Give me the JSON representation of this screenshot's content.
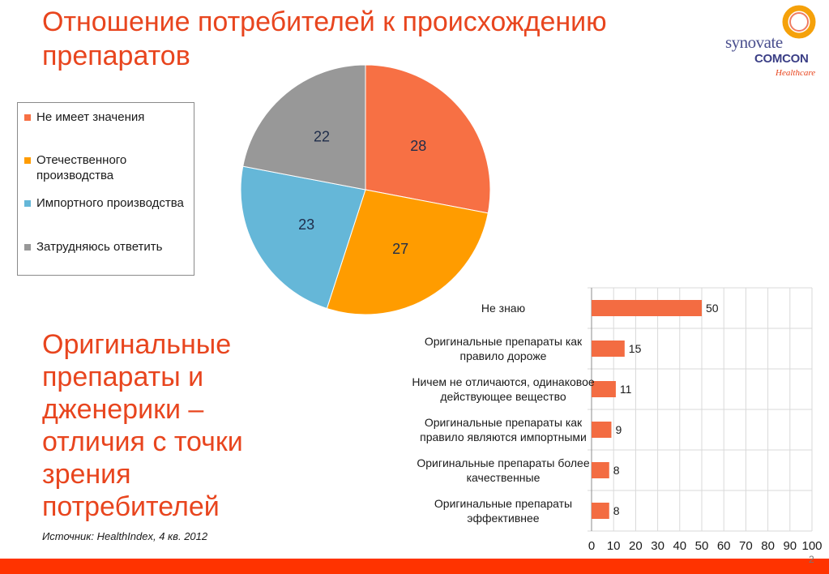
{
  "header": {
    "title": "Отношение потребителей к происхождению препаратов"
  },
  "logo": {
    "line1": "synovate",
    "line2": "COMCON",
    "line3": "Healthcare",
    "ring_color": "#f5a10a",
    "ring_inner_color": "#e8451e"
  },
  "subtitle": "Оригинальные препараты и дженерики – отличия с точки зрения потребителей",
  "source": "Источник: HealthIndex, 4 кв.  2012",
  "page_number": "2",
  "colors": {
    "accent": "#e8451e",
    "bar": "#f36c42",
    "footer": "#ff3300"
  },
  "chart_data": [
    {
      "type": "pie",
      "categories": [
        "Не имеет значения",
        "Отечественного производства",
        "Импортного производства",
        "Затрудняюсь ответить"
      ],
      "values": [
        28,
        27,
        23,
        22
      ],
      "colors": [
        "#f77044",
        "#ff9c00",
        "#65b7d8",
        "#989898"
      ],
      "legend_position": "left"
    },
    {
      "type": "bar",
      "orientation": "horizontal",
      "categories": [
        "Не знаю",
        "Оригинальные препараты как правило дороже",
        "Ничем не отличаются, одинаковое действующее вещество",
        "Оригинальные препараты как правило являются импортными",
        "Оригинальные препараты более качественные",
        "Оригинальные препараты эффективнее"
      ],
      "category_lines": [
        [
          "Не знаю"
        ],
        [
          "Оригинальные препараты как",
          "правило дороже"
        ],
        [
          "Ничем не отличаются, одинаковое",
          "действующее вещество"
        ],
        [
          "Оригинальные препараты как",
          "правило являются импортными"
        ],
        [
          "Оригинальные препараты более",
          "качественные"
        ],
        [
          "Оригинальные препараты",
          "эффективнее"
        ]
      ],
      "values": [
        50,
        15,
        11,
        9,
        8,
        8
      ],
      "xlim": [
        0,
        100
      ],
      "xticks": [
        0,
        10,
        20,
        30,
        40,
        50,
        60,
        70,
        80,
        90,
        100
      ],
      "grid": true,
      "color": "#f36c42"
    }
  ]
}
